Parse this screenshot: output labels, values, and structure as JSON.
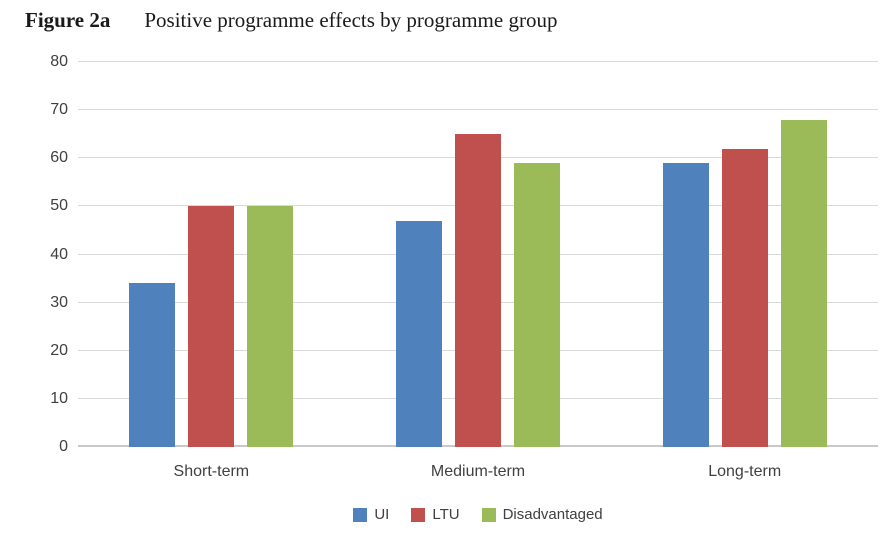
{
  "figure": {
    "label": "Figure 2a",
    "title": "Positive programme effects by programme group"
  },
  "chart_data": {
    "type": "bar",
    "title": "Positive programme effects by programme group",
    "categories": [
      "Short-term",
      "Medium-term",
      "Long-term"
    ],
    "series": [
      {
        "name": "UI",
        "color": "#4F81BD",
        "values": [
          34,
          47,
          59
        ]
      },
      {
        "name": "LTU",
        "color": "#C0504D",
        "values": [
          50,
          65,
          62
        ]
      },
      {
        "name": "Disadvantaged",
        "color": "#9BBB59",
        "values": [
          50,
          59,
          68
        ]
      }
    ],
    "xlabel": "",
    "ylabel": "",
    "ylim": [
      0,
      80
    ],
    "yticks": [
      0,
      10,
      20,
      30,
      40,
      50,
      60,
      70,
      80
    ],
    "grid": "horizontal",
    "legend_position": "bottom",
    "text_color": "#404040",
    "gridline_color": "#D9D9D9",
    "axis_color": "#C9C9C9"
  }
}
